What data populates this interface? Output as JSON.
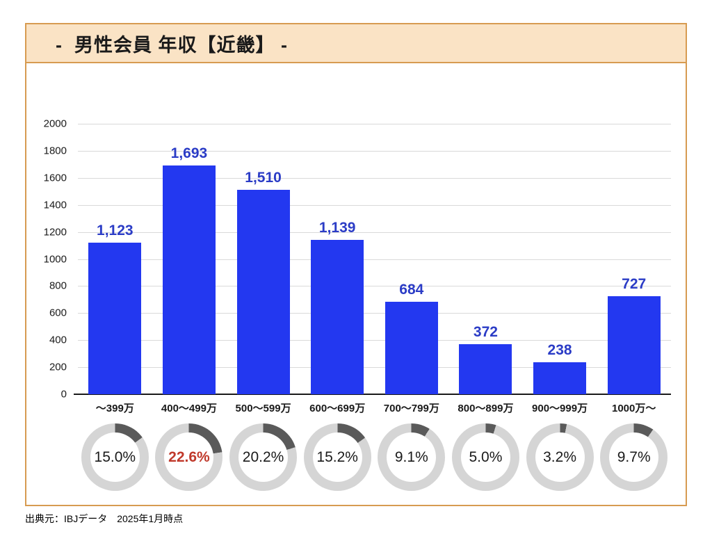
{
  "page": {
    "title": "-  男性会員 年収【近畿】 -",
    "source_note": "出典元：IBJデータ　2025年1月時点"
  },
  "colors": {
    "frame_border": "#D79B51",
    "header_bg": "#FAE3C5",
    "bar_fill": "#2338F0",
    "bar_value_label": "#2B3CC6",
    "gridline": "#D9D9D9",
    "axis_line": "#1a1a1a",
    "donut_track": "#D5D5D5",
    "donut_arc": "#5A5A5A",
    "percent_text": "#1a1a1a",
    "percent_highlight": "#C0392B"
  },
  "chart_data": {
    "type": "bar",
    "title": "男性会員 年収【近畿】",
    "categories": [
      "～399万",
      "400～499万",
      "500～599万",
      "600～699万",
      "700～799万",
      "800～899万",
      "900～999万",
      "1000万～"
    ],
    "values": [
      1123,
      1693,
      1510,
      1139,
      684,
      372,
      238,
      727
    ],
    "value_labels": [
      "1,123",
      "1,693",
      "1,510",
      "1,139",
      "684",
      "372",
      "238",
      "727"
    ],
    "percentages": [
      15.0,
      22.6,
      20.2,
      15.2,
      9.1,
      5.0,
      3.2,
      9.7
    ],
    "percentage_labels": [
      "15.0%",
      "22.6%",
      "20.2%",
      "15.2%",
      "9.1%",
      "5.0%",
      "3.2%",
      "9.7%"
    ],
    "highlighted_percentage_index": 1,
    "xlabel": "",
    "ylabel": "",
    "ylim": [
      0,
      2000
    ],
    "ytick_step": 200,
    "grid": true,
    "legend": false
  }
}
